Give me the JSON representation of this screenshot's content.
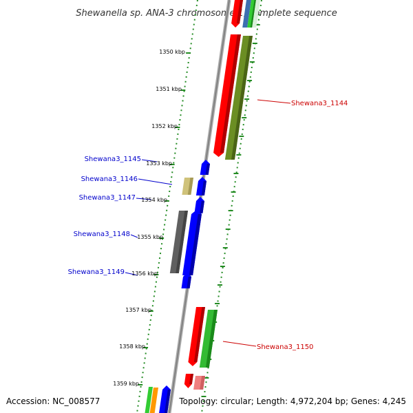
{
  "title": "Shewanella sp. ANA-3 chromosome 1, complete sequence",
  "footer": {
    "accession": "Accession: NC_008577",
    "summary": "Topology: circular; Length: 4,972,204 bp; Genes: 4,245"
  },
  "colors": {
    "backbone": "#8c8c8c",
    "ruler": "#228b22",
    "reverse_label": "#cc0000",
    "forward_label": "#0000cc"
  },
  "ticks": [
    {
      "label": "1350 kbp"
    },
    {
      "label": "1351 kbp"
    },
    {
      "label": "1352 kbp"
    },
    {
      "label": "1353 kbp"
    },
    {
      "label": "1354 kbp"
    },
    {
      "label": "1355 kbp"
    },
    {
      "label": "1356 kbp"
    },
    {
      "label": "1357 kbp"
    },
    {
      "label": "1358 kbp"
    },
    {
      "label": "1359 kbp"
    }
  ],
  "gene_labels": [
    {
      "text": "Shewana3_1144",
      "color": "#cc0000"
    },
    {
      "text": "Shewana3_1145",
      "color": "#0000cc"
    },
    {
      "text": "Shewana3_1146",
      "color": "#0000cc"
    },
    {
      "text": "Shewana3_1147",
      "color": "#0000cc"
    },
    {
      "text": "Shewana3_1148",
      "color": "#0000cc"
    },
    {
      "text": "Shewana3_1149",
      "color": "#0000cc"
    },
    {
      "text": "Shewana3_1150",
      "color": "#cc0000"
    }
  ]
}
